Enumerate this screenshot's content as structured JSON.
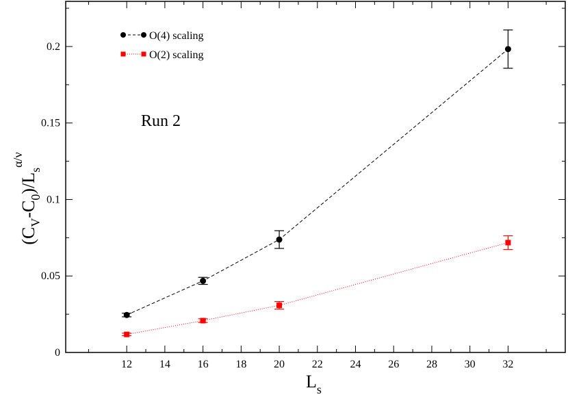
{
  "chart_data": {
    "type": "scatter",
    "title": "",
    "annotation": "Run 2",
    "xlabel": "L",
    "xlabel_sub": "s",
    "ylabel": {
      "open": "(C",
      "sub1": "V",
      "mid": "-C",
      "sub2": "0",
      "mid2": ")/L",
      "sub3": "s",
      "sup": "α/ν"
    },
    "xlim": [
      8.8,
      35.0
    ],
    "ylim": [
      0,
      0.2295
    ],
    "xticks": [
      12,
      14,
      16,
      18,
      20,
      22,
      24,
      26,
      28,
      30,
      32
    ],
    "xtick_labels": [
      "12",
      "14",
      "16",
      "18",
      "20",
      "22",
      "24",
      "26",
      "28",
      "30",
      "32"
    ],
    "yticks": [
      0,
      0.05,
      0.1,
      0.15,
      0.2
    ],
    "ytick_labels": [
      "0",
      "0.05",
      "0.1",
      "0.15",
      "0.2"
    ],
    "legend_position": "top-left",
    "series": [
      {
        "name": "O(4) scaling",
        "color": "#000000",
        "marker": "circle",
        "line_style": "dashed",
        "x": [
          12,
          16,
          20,
          32
        ],
        "y": [
          0.0245,
          0.0468,
          0.0738,
          0.1983
        ],
        "err": [
          0.0012,
          0.0023,
          0.0058,
          0.0125
        ]
      },
      {
        "name": "O(2) scaling",
        "color": "#ff0000",
        "marker": "square",
        "line_style": "dotted",
        "x": [
          12,
          16,
          20,
          32
        ],
        "y": [
          0.0118,
          0.0208,
          0.0308,
          0.0718
        ],
        "err": [
          0.0008,
          0.0012,
          0.0025,
          0.0045
        ]
      }
    ]
  }
}
